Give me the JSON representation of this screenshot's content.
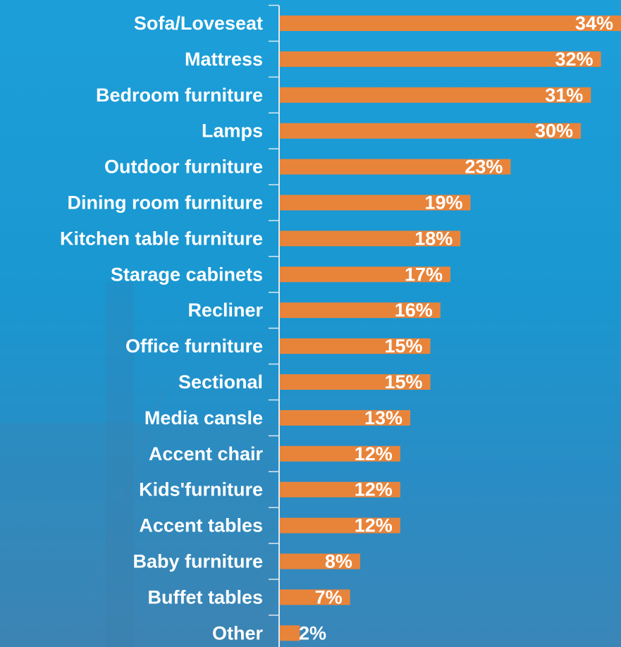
{
  "chart_data": {
    "type": "bar",
    "orientation": "horizontal",
    "color": "#e8843a",
    "categories": [
      "Sofa/Loveseat",
      "Mattress",
      "Bedroom furniture",
      "Lamps",
      "Outdoor furniture",
      "Dining room furniture",
      "Kitchen table furniture",
      "Starage cabinets",
      "Recliner",
      "Office furniture",
      "Sectional",
      "Media cansle",
      "Accent chair",
      "Kids'furniture",
      "Accent tables",
      "Baby furniture",
      "Buffet tables",
      "Other"
    ],
    "values": [
      34,
      32,
      31,
      30,
      23,
      19,
      18,
      17,
      16,
      15,
      15,
      13,
      12,
      12,
      12,
      8,
      7,
      2
    ],
    "value_labels": [
      "34%",
      "32%",
      "31%",
      "30%",
      "23%",
      "19%",
      "18%",
      "17%",
      "16%",
      "15%",
      "15%",
      "13%",
      "12%",
      "12%",
      "12%",
      "8%",
      "7%",
      "2%"
    ]
  }
}
